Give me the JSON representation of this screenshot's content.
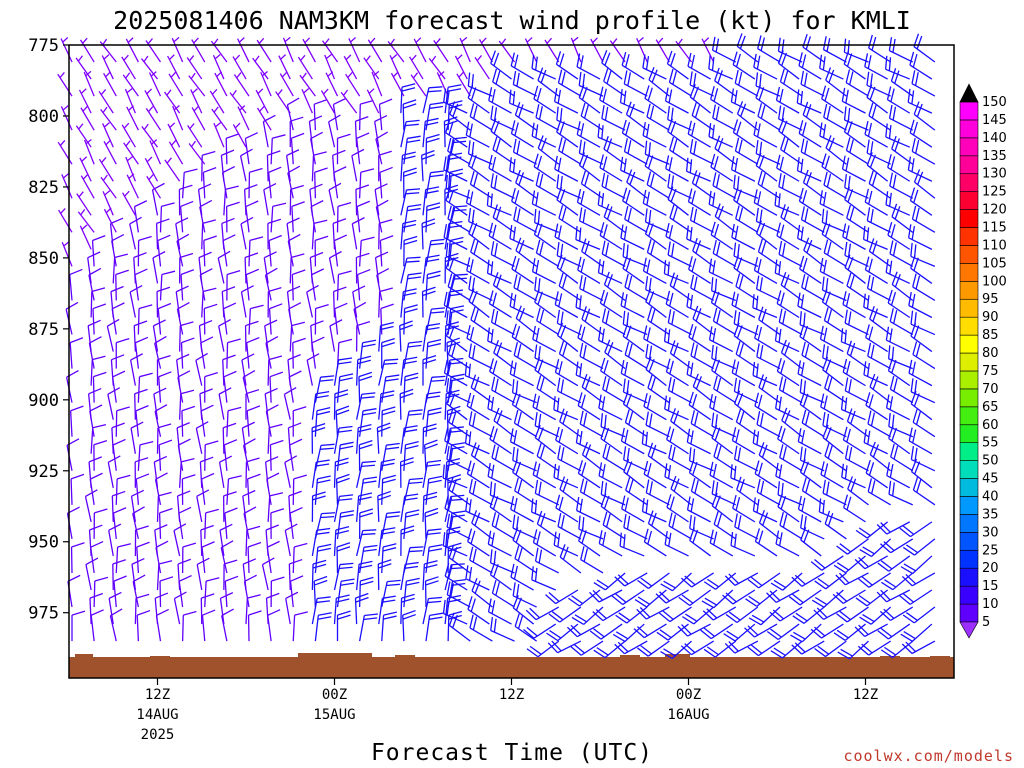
{
  "chart_data": {
    "type": "wind_barb_time_height",
    "title": "2025081406 NAM3KM forecast wind profile (kt) for KMLI",
    "xlabel": "Forecast Time (UTC)",
    "ylabel": "",
    "y_axis": {
      "reversed": true,
      "range": [
        775,
        998
      ],
      "ticks": [
        775,
        800,
        825,
        850,
        875,
        900,
        925,
        950,
        975
      ],
      "tick_labels": [
        "775",
        "800",
        "825",
        "850",
        "875",
        "900",
        "925",
        "950",
        "975"
      ]
    },
    "x_axis": {
      "range_hours": [
        0,
        60
      ],
      "ticks": [
        {
          "hour": 6,
          "line1": "12Z",
          "line2": "14AUG",
          "line3": "2025"
        },
        {
          "hour": 18,
          "line1": "00Z",
          "line2": "15AUG",
          "line3": ""
        },
        {
          "hour": 30,
          "line1": "12Z",
          "line2": "",
          "line3": ""
        },
        {
          "hour": 42,
          "line1": "00Z",
          "line2": "16AUG",
          "line3": ""
        },
        {
          "hour": 54,
          "line1": "12Z",
          "line2": "",
          "line3": ""
        }
      ]
    },
    "grid": false,
    "colorbar": {
      "units": "kt",
      "levels": [
        "5",
        "10",
        "15",
        "20",
        "25",
        "30",
        "35",
        "40",
        "45",
        "50",
        "55",
        "60",
        "65",
        "70",
        "75",
        "80",
        "85",
        "90",
        "95",
        "100",
        "105",
        "110",
        "115",
        "120",
        "125",
        "130",
        "135",
        "140",
        "145",
        "150"
      ],
      "colors": [
        "#7f00ff",
        "#5f00ff",
        "#3a00ff",
        "#1a10ff",
        "#0033ff",
        "#0055ff",
        "#0077ff",
        "#0099ff",
        "#00bbdd",
        "#00ddbb",
        "#00ee88",
        "#22ee22",
        "#44ee11",
        "#77ee00",
        "#aaee00",
        "#ddee00",
        "#ffff00",
        "#ffdd00",
        "#ffbb00",
        "#ff9900",
        "#ff7700",
        "#ff5500",
        "#ff3300",
        "#ff0000",
        "#ff0033",
        "#ff0066",
        "#ff0099",
        "#ff00bb",
        "#ff00dd",
        "#ff00ff"
      ],
      "top_arrow_color": "#000000",
      "bottom_arrow_color": "#9b30ff"
    },
    "terrain_color": "#a0522d",
    "series": [
      {
        "values": [
          {
            "x_hour": 0,
            "p_hpa": 775,
            "speed_kt": 5,
            "dir_deg": 330
          },
          {
            "x_hour": 15,
            "p_hpa": 880,
            "speed_kt": 10,
            "dir_deg": 355
          },
          {
            "x_hour": 22,
            "p_hpa": 900,
            "speed_kt": 20,
            "dir_deg": 5
          },
          {
            "x_hour": 30,
            "p_hpa": 900,
            "speed_kt": 20,
            "dir_deg": 300
          },
          {
            "x_hour": 50,
            "p_hpa": 925,
            "speed_kt": 20,
            "dir_deg": 300
          },
          {
            "x_hour": 55,
            "p_hpa": 975,
            "speed_kt": 20,
            "dir_deg": 235
          }
        ]
      }
    ]
  },
  "credit": "coolwx.com/models"
}
